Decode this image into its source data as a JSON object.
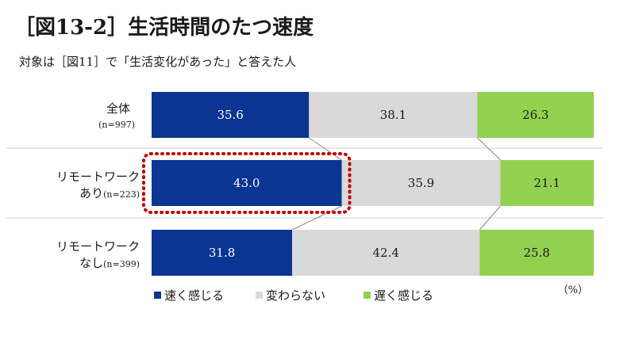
{
  "title": "［図13-2］生活時間のたつ速度",
  "subtitle": "対象は［図11］で「生活変化があった」と答えた人",
  "chart_data": {
    "type": "bar",
    "stacked": true,
    "orientation": "horizontal",
    "unit": "（%）",
    "categories": [
      {
        "label": "全体",
        "n": "(n=997)"
      },
      {
        "label": "リモートワーク",
        "label2": "あり",
        "n": "(n=223)"
      },
      {
        "label": "リモートワーク",
        "label2": "なし",
        "n": "(n=399)"
      }
    ],
    "series": [
      {
        "name": "速く感じる",
        "color": "#0a3592",
        "text_color": "#ffffff",
        "values": [
          35.6,
          43.0,
          31.8
        ]
      },
      {
        "name": "変わらない",
        "color": "#d9d9d9",
        "text_color": "#1a1a1a",
        "values": [
          38.1,
          35.9,
          42.4
        ]
      },
      {
        "name": "遅く感じる",
        "color": "#92d050",
        "text_color": "#1a1a1a",
        "values": [
          26.3,
          21.1,
          25.8
        ]
      }
    ],
    "xlim": [
      0,
      100
    ],
    "legend_position": "bottom",
    "highlight": {
      "category_index": 1,
      "series_index": 0,
      "style": "dotted",
      "color": "#c00000"
    }
  }
}
